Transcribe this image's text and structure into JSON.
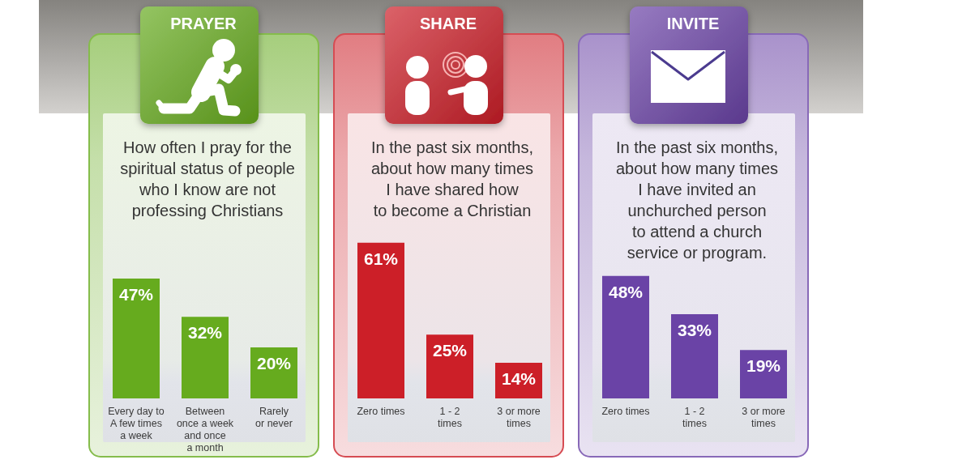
{
  "chart_data": [
    {
      "type": "bar",
      "title": "PRAYER",
      "subtitle": "How often I pray for the\nspiritual status of people\nwho I know are not\nprofessing Christians",
      "categories": [
        "Every day to\nA few times\na week",
        "Between\nonce a week\nand once\na month",
        "Rarely\nor never"
      ],
      "values": [
        47,
        32,
        20
      ],
      "value_labels": [
        "47%",
        "32%",
        "20%"
      ],
      "color": "#66ab1e",
      "tick_labels": "x"
    },
    {
      "type": "bar",
      "title": "SHARE",
      "subtitle": "In the past six months,\nabout how many times\nI have shared how\nto become a Christian",
      "categories": [
        "Zero times",
        "1 - 2\ntimes",
        "3 or more\ntimes"
      ],
      "values": [
        61,
        25,
        14
      ],
      "value_labels": [
        "61%",
        "25%",
        "14%"
      ],
      "color": "#cc1f28",
      "tick_labels": "x"
    },
    {
      "type": "bar",
      "title": "INVITE",
      "subtitle": "In the past six months,\nabout how many times\nI have invited an\nunchurched person\nto attend a church\nservice or program.",
      "categories": [
        "Zero times",
        "1 - 2\ntimes",
        "3 or more\ntimes"
      ],
      "values": [
        48,
        33,
        19
      ],
      "value_labels": [
        "48%",
        "33%",
        "19%"
      ],
      "color": "#6a43a6",
      "tick_labels": "x"
    }
  ]
}
